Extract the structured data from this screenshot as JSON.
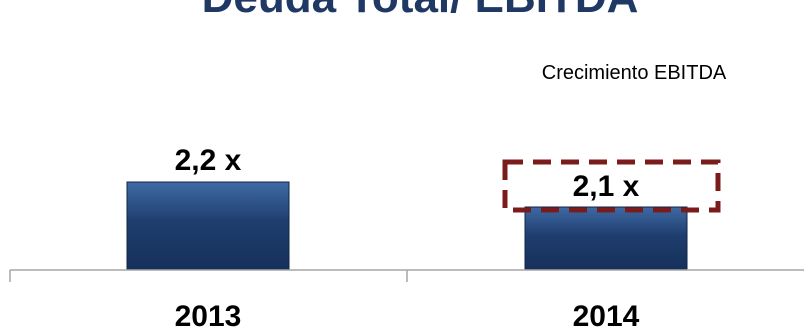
{
  "chart_data": {
    "type": "bar",
    "title": "Deuda Total/ EBITDA",
    "categories": [
      "2013",
      "2014"
    ],
    "values": [
      2.2,
      2.1
    ],
    "data_labels": [
      "2,2 x",
      "2,1 x"
    ],
    "annotation": "Crecimiento EBITDA",
    "xlabel": "",
    "ylabel": "",
    "grid": false,
    "legend": "none"
  },
  "colors": {
    "title": "#1f3864",
    "bar": "#1f3e6e",
    "bar_highlight": "#3f6aa5",
    "highlight_box": "#7b1c1c",
    "axis": "#a6a6a6"
  }
}
